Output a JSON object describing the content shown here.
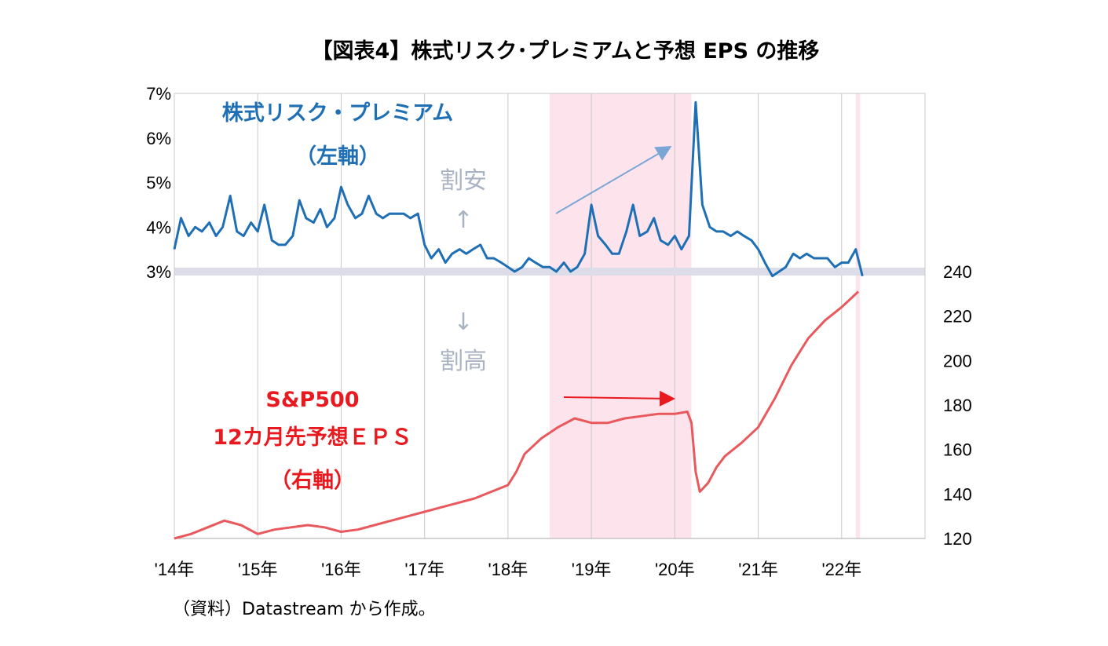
{
  "chart_data": {
    "type": "line",
    "title": "【図表4】株式リスク･プレミアムと予想 EPS の推移",
    "source": "（資料）Datastream から作成。",
    "x_ticks": [
      "'14年",
      "'15年",
      "'16年",
      "'17年",
      "'18年",
      "'19年",
      "'20年",
      "'21年",
      "'22年"
    ],
    "x_range": [
      2014,
      2023
    ],
    "y_left": {
      "ticks": [
        "3%",
        "4%",
        "5%",
        "6%",
        "7%"
      ],
      "range": [
        3,
        7
      ]
    },
    "y_right": {
      "ticks": [
        "120",
        "140",
        "160",
        "180",
        "200",
        "220",
        "240"
      ],
      "range": [
        120,
        240
      ]
    },
    "grid": "vertical at year boundaries",
    "reference_band": {
      "axis": "left",
      "value": 3
    },
    "shaded_period": [
      2018.5,
      2020.2
    ],
    "shaded_period_2": [
      2022.17,
      2022.22
    ],
    "annotations": {
      "cheap": "割安",
      "cheap_arrow": "↑",
      "expensive_arrow": "↓",
      "expensive": "割高"
    },
    "series": [
      {
        "name": "株式リスク・プレミアム",
        "axis_label": "（左軸）",
        "color": "#1f6fb5",
        "axis": "left",
        "x": [
          2014.0,
          2014.08,
          2014.17,
          2014.25,
          2014.33,
          2014.42,
          2014.5,
          2014.58,
          2014.67,
          2014.75,
          2014.83,
          2014.92,
          2015.0,
          2015.08,
          2015.17,
          2015.25,
          2015.33,
          2015.42,
          2015.5,
          2015.58,
          2015.67,
          2015.75,
          2015.83,
          2015.92,
          2016.0,
          2016.08,
          2016.17,
          2016.25,
          2016.33,
          2016.42,
          2016.5,
          2016.58,
          2016.67,
          2016.75,
          2016.83,
          2016.92,
          2017.0,
          2017.08,
          2017.17,
          2017.25,
          2017.33,
          2017.42,
          2017.5,
          2017.58,
          2017.67,
          2017.75,
          2017.83,
          2017.92,
          2018.0,
          2018.08,
          2018.17,
          2018.25,
          2018.33,
          2018.42,
          2018.5,
          2018.58,
          2018.67,
          2018.75,
          2018.83,
          2018.92,
          2019.0,
          2019.08,
          2019.17,
          2019.25,
          2019.33,
          2019.42,
          2019.5,
          2019.58,
          2019.67,
          2019.75,
          2019.83,
          2019.92,
          2020.0,
          2020.08,
          2020.17,
          2020.25,
          2020.33,
          2020.42,
          2020.5,
          2020.58,
          2020.67,
          2020.75,
          2020.83,
          2020.92,
          2021.0,
          2021.08,
          2021.17,
          2021.25,
          2021.33,
          2021.42,
          2021.5,
          2021.58,
          2021.67,
          2021.75,
          2021.83,
          2021.92,
          2022.0,
          2022.08,
          2022.17,
          2022.25
        ],
        "values": [
          3.5,
          4.2,
          3.8,
          4.0,
          3.9,
          4.1,
          3.8,
          4.0,
          4.7,
          3.9,
          3.8,
          4.1,
          3.9,
          4.5,
          3.7,
          3.6,
          3.6,
          3.8,
          4.6,
          4.2,
          4.1,
          4.4,
          4.0,
          4.2,
          4.9,
          4.5,
          4.2,
          4.3,
          4.7,
          4.3,
          4.2,
          4.3,
          4.3,
          4.3,
          4.2,
          4.3,
          3.6,
          3.3,
          3.5,
          3.2,
          3.4,
          3.5,
          3.4,
          3.5,
          3.6,
          3.3,
          3.3,
          3.2,
          3.1,
          3.0,
          3.1,
          3.3,
          3.2,
          3.1,
          3.1,
          3.0,
          3.2,
          3.0,
          3.1,
          3.4,
          4.5,
          3.8,
          3.6,
          3.4,
          3.4,
          3.9,
          4.5,
          3.8,
          3.9,
          4.2,
          3.7,
          3.6,
          3.8,
          3.5,
          3.8,
          6.8,
          4.5,
          4.0,
          3.9,
          3.9,
          3.8,
          3.9,
          3.8,
          3.7,
          3.5,
          3.2,
          2.9,
          3.0,
          3.1,
          3.4,
          3.3,
          3.4,
          3.3,
          3.3,
          3.3,
          3.1,
          3.2,
          3.2,
          3.5,
          2.9
        ]
      },
      {
        "name": "S&P500",
        "name_line2": "12カ月先予想ＥＰＳ",
        "axis_label": "（右軸）",
        "color": "#e8585c",
        "axis": "right",
        "x": [
          2014.0,
          2014.2,
          2014.4,
          2014.6,
          2014.8,
          2015.0,
          2015.2,
          2015.4,
          2015.6,
          2015.8,
          2016.0,
          2016.2,
          2016.4,
          2016.6,
          2016.8,
          2017.0,
          2017.2,
          2017.4,
          2017.6,
          2017.8,
          2018.0,
          2018.1,
          2018.2,
          2018.4,
          2018.6,
          2018.8,
          2019.0,
          2019.2,
          2019.4,
          2019.6,
          2019.8,
          2020.0,
          2020.15,
          2020.2,
          2020.25,
          2020.3,
          2020.4,
          2020.5,
          2020.6,
          2020.8,
          2021.0,
          2021.2,
          2021.4,
          2021.6,
          2021.8,
          2022.0,
          2022.2
        ],
        "values": [
          120,
          122,
          125,
          128,
          126,
          122,
          124,
          125,
          126,
          125,
          123,
          124,
          126,
          128,
          130,
          132,
          134,
          136,
          138,
          141,
          144,
          150,
          158,
          165,
          170,
          174,
          172,
          172,
          174,
          175,
          176,
          176,
          177,
          172,
          150,
          141,
          145,
          152,
          157,
          163,
          170,
          183,
          198,
          210,
          218,
          224,
          231
        ]
      }
    ]
  }
}
